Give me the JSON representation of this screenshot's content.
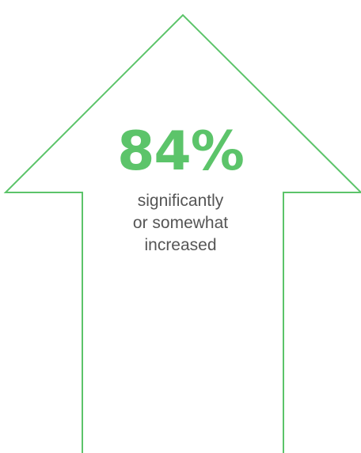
{
  "stat": {
    "value": "84%",
    "caption_lines": [
      "significantly",
      "or somewhat",
      "increased"
    ]
  },
  "colors": {
    "accent": "#5cc46a",
    "caption": "#555555",
    "background": "#ffffff"
  },
  "icons": {
    "arrow": "up-arrow-icon"
  }
}
